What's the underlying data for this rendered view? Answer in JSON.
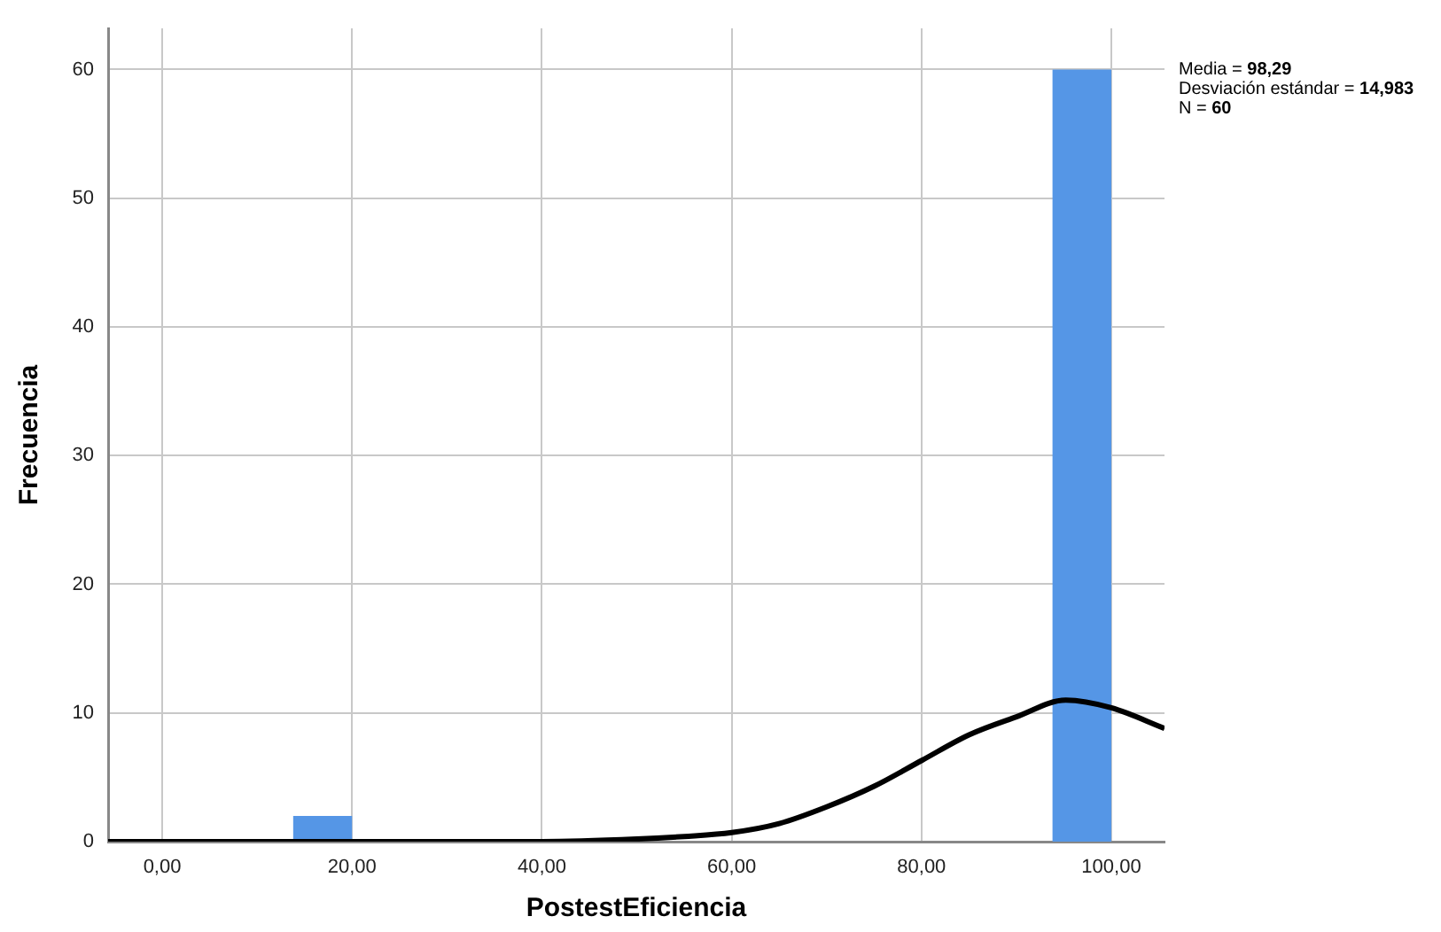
{
  "chart_data": {
    "type": "histogram",
    "xlabel": "PostestEficiencia",
    "ylabel": "Frecuencia",
    "annotations": [
      "Media = 98,29",
      "Desviación estándar = 14,983",
      "N = 60"
    ],
    "bins": [
      13.8,
      20.0,
      93.8,
      100.0
    ],
    "values": [
      2,
      0,
      60
    ],
    "color": "#5596e6",
    "series": [
      {
        "type": "line",
        "color": "#000000",
        "x": [
          -5.7,
          0,
          10,
          20,
          30,
          40,
          50,
          55,
          60,
          65,
          70,
          75,
          80,
          85,
          90,
          95.2,
          100,
          105.6
        ],
        "values": [
          0,
          0,
          0,
          0,
          0,
          0,
          0.2,
          0.4,
          0.7,
          1.4,
          2.7,
          4.3,
          6.3,
          8.3,
          9.7,
          11,
          10.4,
          8.8
        ]
      }
    ],
    "xlim": [
      -5.7,
      105.6
    ],
    "xticks": [
      {
        "value": 0,
        "label": "0,00"
      },
      {
        "value": 20,
        "label": "20,00"
      },
      {
        "value": 40,
        "label": "40,00"
      },
      {
        "value": 60,
        "label": "60,00"
      },
      {
        "value": 80,
        "label": "80,00"
      },
      {
        "value": 100,
        "label": "100,00"
      }
    ],
    "ylim": [
      0,
      63.2
    ],
    "yticks": [
      0,
      10,
      20,
      30,
      40,
      50,
      60
    ],
    "grid": true,
    "legend": false
  }
}
